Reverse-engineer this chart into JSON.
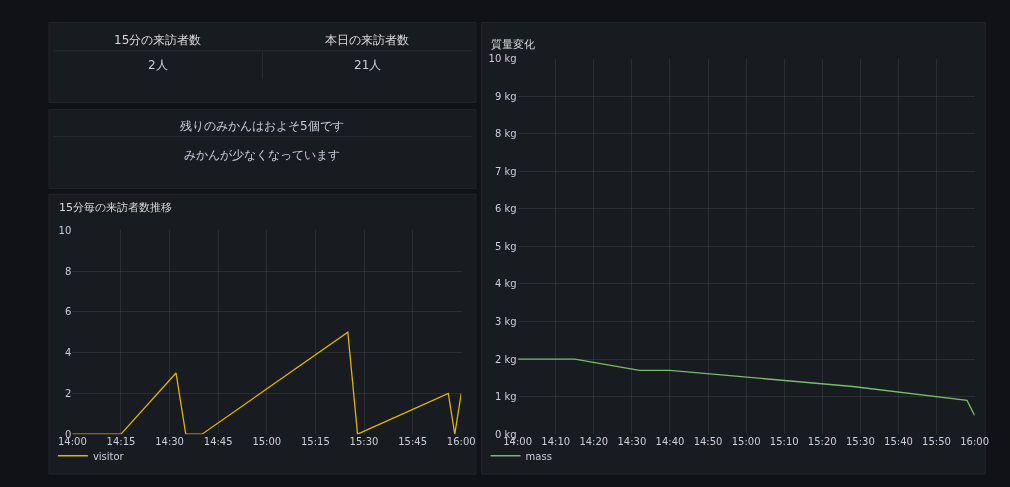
{
  "chart_data": [
    {
      "type": "other",
      "annotations": [
        "15分の来訪者数",
        "本日の来訪者数",
        "2人",
        "21人"
      ]
    },
    {
      "type": "other",
      "annotations": [
        "残りのみかんはおよそ5個です",
        "みかんが少なくなっています"
      ]
    },
    {
      "type": "line",
      "title": "15分毎の来訪者数推移",
      "series": [
        {
          "name": "visitor",
          "color": "#e0b400",
          "x": [
            14.0,
            14.25,
            14.5333,
            14.5833,
            14.6667,
            15.4167,
            15.4667,
            15.9333,
            15.9667,
            16.0
          ],
          "values": [
            0,
            0,
            3,
            0,
            0,
            5,
            0,
            2,
            0,
            2
          ]
        }
      ],
      "xlim": [
        14.0,
        16.0
      ],
      "xticks": [
        {
          "value": 14.0,
          "label": "14:00"
        },
        {
          "value": 14.25,
          "label": "14:15"
        },
        {
          "value": 14.5,
          "label": "14:30"
        },
        {
          "value": 14.75,
          "label": "14:45"
        },
        {
          "value": 15.0,
          "label": "15:00"
        },
        {
          "value": 15.25,
          "label": "15:15"
        },
        {
          "value": 15.5,
          "label": "15:30"
        },
        {
          "value": 15.75,
          "label": "15:45"
        },
        {
          "value": 16.0,
          "label": "16:00"
        }
      ],
      "ylim": [
        0,
        10
      ],
      "yticks": [
        0,
        2,
        4,
        6,
        8,
        10
      ],
      "grid": true,
      "legend": "bottom left",
      "marker": "none",
      "line_style": "solid"
    },
    {
      "type": "line",
      "title": "質量変化",
      "series": [
        {
          "name": "mass",
          "color": "#73bf69",
          "x": [
            14.0,
            14.25,
            14.5333,
            14.6667,
            15.4667,
            15.9667,
            16.0
          ],
          "values": [
            2,
            2,
            1.7,
            1.7,
            1.27,
            0.9,
            0.5
          ]
        }
      ],
      "xlim": [
        14.0,
        16.0
      ],
      "xticks": [
        {
          "value": 14.0,
          "label": "14:00"
        },
        {
          "value": 14.1667,
          "label": "14:10"
        },
        {
          "value": 14.3333,
          "label": "14:20"
        },
        {
          "value": 14.5,
          "label": "14:30"
        },
        {
          "value": 14.6667,
          "label": "14:40"
        },
        {
          "value": 14.8333,
          "label": "14:50"
        },
        {
          "value": 15.0,
          "label": "15:00"
        },
        {
          "value": 15.1667,
          "label": "15:10"
        },
        {
          "value": 15.3333,
          "label": "15:20"
        },
        {
          "value": 15.5,
          "label": "15:30"
        },
        {
          "value": 15.6667,
          "label": "15:40"
        },
        {
          "value": 15.8333,
          "label": "15:50"
        },
        {
          "value": 16.0,
          "label": "16:00"
        }
      ],
      "ylim": [
        0,
        10
      ],
      "yticks": [
        {
          "value": 0,
          "label": "0 kg"
        },
        {
          "value": 1,
          "label": "1 kg"
        },
        {
          "value": 2,
          "label": "2 kg"
        },
        {
          "value": 3,
          "label": "3 kg"
        },
        {
          "value": 4,
          "label": "4 kg"
        },
        {
          "value": 5,
          "label": "5 kg"
        },
        {
          "value": 6,
          "label": "6 kg"
        },
        {
          "value": 7,
          "label": "7 kg"
        },
        {
          "value": 8,
          "label": "8 kg"
        },
        {
          "value": 9,
          "label": "9 kg"
        },
        {
          "value": 10,
          "label": "10 kg"
        }
      ],
      "grid": true,
      "legend": "bottom left",
      "marker": "none",
      "line_style": "solid"
    }
  ]
}
